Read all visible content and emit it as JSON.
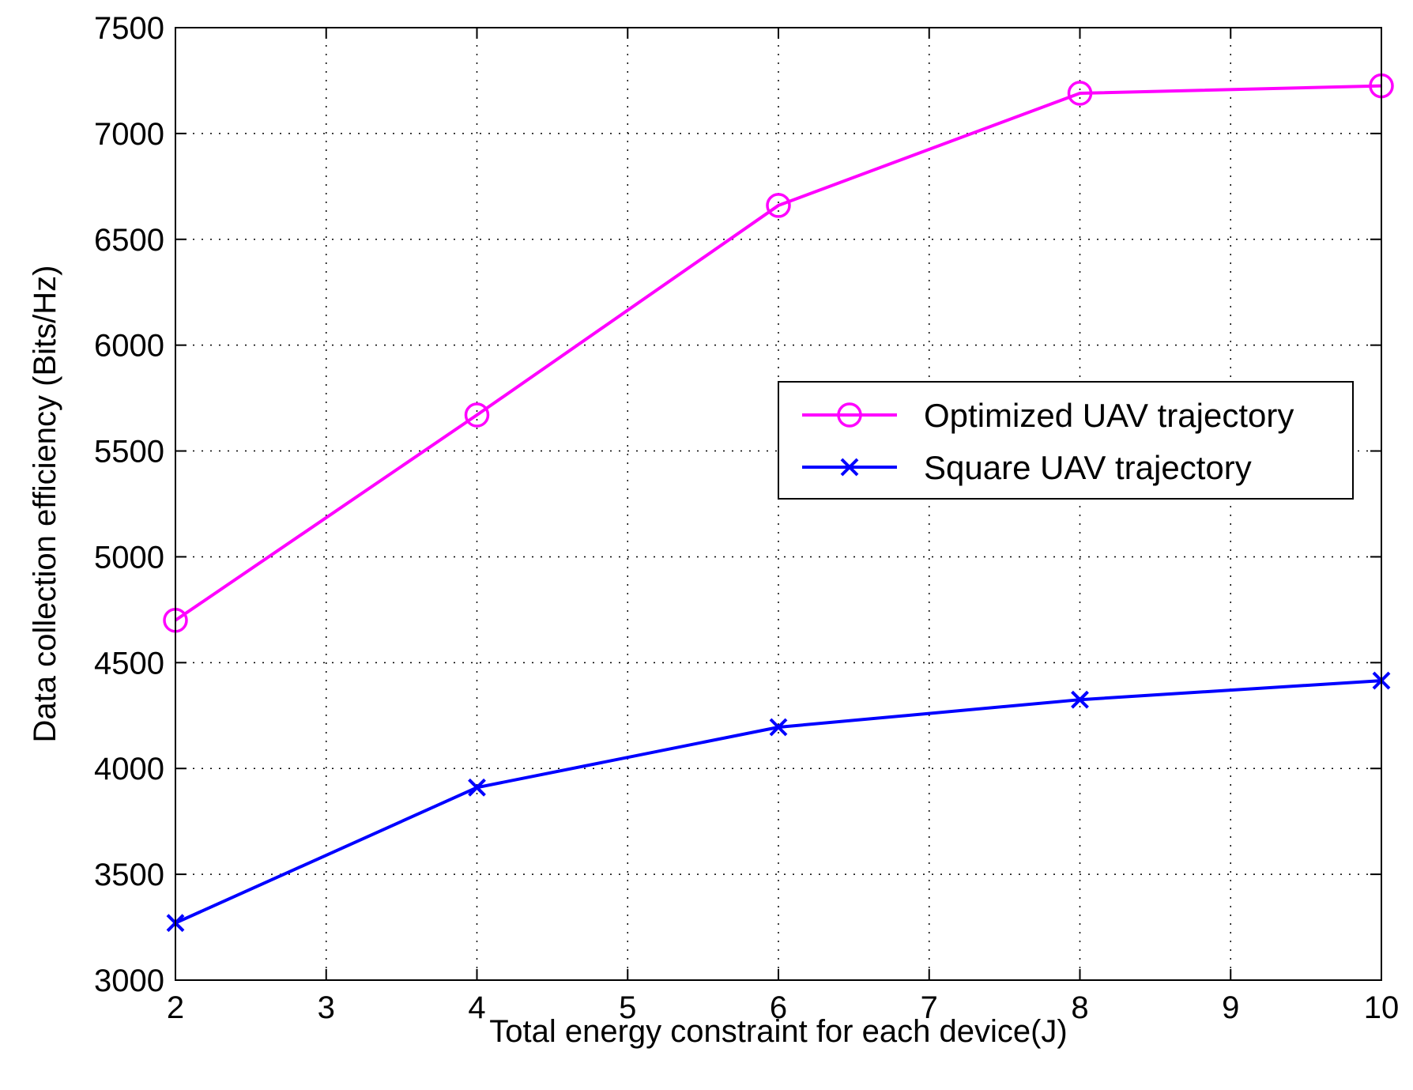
{
  "chart_data": {
    "type": "line",
    "title": "",
    "xlabel": "Total energy constraint for each device(J)",
    "ylabel": "Data collection efficiency (Bits/Hz)",
    "xlim": [
      2,
      10
    ],
    "ylim": [
      3000,
      7500
    ],
    "xticks": [
      2,
      3,
      4,
      5,
      6,
      7,
      8,
      9,
      10
    ],
    "yticks": [
      3000,
      3500,
      4000,
      4500,
      5000,
      5500,
      6000,
      6500,
      7000,
      7500
    ],
    "grid": true,
    "legend_position": "center-right",
    "x": [
      2,
      4,
      6,
      8,
      10
    ],
    "series": [
      {
        "name": "Optimized UAV trajectory",
        "marker": "circle",
        "color": "#ff00ff",
        "values": [
          4700,
          5670,
          6660,
          7190,
          7225
        ]
      },
      {
        "name": "Square UAV trajectory",
        "marker": "x",
        "color": "#0000ff",
        "values": [
          3270,
          3910,
          4195,
          4325,
          4415
        ]
      }
    ]
  }
}
